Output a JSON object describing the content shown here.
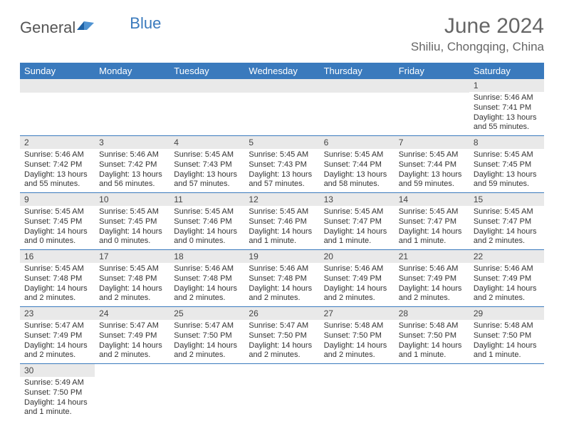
{
  "brand": {
    "general": "General",
    "blue": "Blue"
  },
  "title": "June 2024",
  "location": "Shiliu, Chongqing, China",
  "colors": {
    "header_bg": "#3a7abd",
    "header_text": "#ffffff",
    "daynum_bg": "#e9e9e9",
    "cell_border": "#3a7abd",
    "page_bg": "#ffffff",
    "title_color": "#666666",
    "body_text": "#333333"
  },
  "day_headers": [
    "Sunday",
    "Monday",
    "Tuesday",
    "Wednesday",
    "Thursday",
    "Friday",
    "Saturday"
  ],
  "weeks": [
    [
      {
        "day": "",
        "sunrise": "",
        "sunset": "",
        "daylight": ""
      },
      {
        "day": "",
        "sunrise": "",
        "sunset": "",
        "daylight": ""
      },
      {
        "day": "",
        "sunrise": "",
        "sunset": "",
        "daylight": ""
      },
      {
        "day": "",
        "sunrise": "",
        "sunset": "",
        "daylight": ""
      },
      {
        "day": "",
        "sunrise": "",
        "sunset": "",
        "daylight": ""
      },
      {
        "day": "",
        "sunrise": "",
        "sunset": "",
        "daylight": ""
      },
      {
        "day": "1",
        "sunrise": "Sunrise: 5:46 AM",
        "sunset": "Sunset: 7:41 PM",
        "daylight": "Daylight: 13 hours and 55 minutes."
      }
    ],
    [
      {
        "day": "2",
        "sunrise": "Sunrise: 5:46 AM",
        "sunset": "Sunset: 7:42 PM",
        "daylight": "Daylight: 13 hours and 55 minutes."
      },
      {
        "day": "3",
        "sunrise": "Sunrise: 5:46 AM",
        "sunset": "Sunset: 7:42 PM",
        "daylight": "Daylight: 13 hours and 56 minutes."
      },
      {
        "day": "4",
        "sunrise": "Sunrise: 5:45 AM",
        "sunset": "Sunset: 7:43 PM",
        "daylight": "Daylight: 13 hours and 57 minutes."
      },
      {
        "day": "5",
        "sunrise": "Sunrise: 5:45 AM",
        "sunset": "Sunset: 7:43 PM",
        "daylight": "Daylight: 13 hours and 57 minutes."
      },
      {
        "day": "6",
        "sunrise": "Sunrise: 5:45 AM",
        "sunset": "Sunset: 7:44 PM",
        "daylight": "Daylight: 13 hours and 58 minutes."
      },
      {
        "day": "7",
        "sunrise": "Sunrise: 5:45 AM",
        "sunset": "Sunset: 7:44 PM",
        "daylight": "Daylight: 13 hours and 59 minutes."
      },
      {
        "day": "8",
        "sunrise": "Sunrise: 5:45 AM",
        "sunset": "Sunset: 7:45 PM",
        "daylight": "Daylight: 13 hours and 59 minutes."
      }
    ],
    [
      {
        "day": "9",
        "sunrise": "Sunrise: 5:45 AM",
        "sunset": "Sunset: 7:45 PM",
        "daylight": "Daylight: 14 hours and 0 minutes."
      },
      {
        "day": "10",
        "sunrise": "Sunrise: 5:45 AM",
        "sunset": "Sunset: 7:45 PM",
        "daylight": "Daylight: 14 hours and 0 minutes."
      },
      {
        "day": "11",
        "sunrise": "Sunrise: 5:45 AM",
        "sunset": "Sunset: 7:46 PM",
        "daylight": "Daylight: 14 hours and 0 minutes."
      },
      {
        "day": "12",
        "sunrise": "Sunrise: 5:45 AM",
        "sunset": "Sunset: 7:46 PM",
        "daylight": "Daylight: 14 hours and 1 minute."
      },
      {
        "day": "13",
        "sunrise": "Sunrise: 5:45 AM",
        "sunset": "Sunset: 7:47 PM",
        "daylight": "Daylight: 14 hours and 1 minute."
      },
      {
        "day": "14",
        "sunrise": "Sunrise: 5:45 AM",
        "sunset": "Sunset: 7:47 PM",
        "daylight": "Daylight: 14 hours and 1 minute."
      },
      {
        "day": "15",
        "sunrise": "Sunrise: 5:45 AM",
        "sunset": "Sunset: 7:47 PM",
        "daylight": "Daylight: 14 hours and 2 minutes."
      }
    ],
    [
      {
        "day": "16",
        "sunrise": "Sunrise: 5:45 AM",
        "sunset": "Sunset: 7:48 PM",
        "daylight": "Daylight: 14 hours and 2 minutes."
      },
      {
        "day": "17",
        "sunrise": "Sunrise: 5:45 AM",
        "sunset": "Sunset: 7:48 PM",
        "daylight": "Daylight: 14 hours and 2 minutes."
      },
      {
        "day": "18",
        "sunrise": "Sunrise: 5:46 AM",
        "sunset": "Sunset: 7:48 PM",
        "daylight": "Daylight: 14 hours and 2 minutes."
      },
      {
        "day": "19",
        "sunrise": "Sunrise: 5:46 AM",
        "sunset": "Sunset: 7:48 PM",
        "daylight": "Daylight: 14 hours and 2 minutes."
      },
      {
        "day": "20",
        "sunrise": "Sunrise: 5:46 AM",
        "sunset": "Sunset: 7:49 PM",
        "daylight": "Daylight: 14 hours and 2 minutes."
      },
      {
        "day": "21",
        "sunrise": "Sunrise: 5:46 AM",
        "sunset": "Sunset: 7:49 PM",
        "daylight": "Daylight: 14 hours and 2 minutes."
      },
      {
        "day": "22",
        "sunrise": "Sunrise: 5:46 AM",
        "sunset": "Sunset: 7:49 PM",
        "daylight": "Daylight: 14 hours and 2 minutes."
      }
    ],
    [
      {
        "day": "23",
        "sunrise": "Sunrise: 5:47 AM",
        "sunset": "Sunset: 7:49 PM",
        "daylight": "Daylight: 14 hours and 2 minutes."
      },
      {
        "day": "24",
        "sunrise": "Sunrise: 5:47 AM",
        "sunset": "Sunset: 7:49 PM",
        "daylight": "Daylight: 14 hours and 2 minutes."
      },
      {
        "day": "25",
        "sunrise": "Sunrise: 5:47 AM",
        "sunset": "Sunset: 7:50 PM",
        "daylight": "Daylight: 14 hours and 2 minutes."
      },
      {
        "day": "26",
        "sunrise": "Sunrise: 5:47 AM",
        "sunset": "Sunset: 7:50 PM",
        "daylight": "Daylight: 14 hours and 2 minutes."
      },
      {
        "day": "27",
        "sunrise": "Sunrise: 5:48 AM",
        "sunset": "Sunset: 7:50 PM",
        "daylight": "Daylight: 14 hours and 2 minutes."
      },
      {
        "day": "28",
        "sunrise": "Sunrise: 5:48 AM",
        "sunset": "Sunset: 7:50 PM",
        "daylight": "Daylight: 14 hours and 1 minute."
      },
      {
        "day": "29",
        "sunrise": "Sunrise: 5:48 AM",
        "sunset": "Sunset: 7:50 PM",
        "daylight": "Daylight: 14 hours and 1 minute."
      }
    ],
    [
      {
        "day": "30",
        "sunrise": "Sunrise: 5:49 AM",
        "sunset": "Sunset: 7:50 PM",
        "daylight": "Daylight: 14 hours and 1 minute."
      },
      {
        "day": "",
        "sunrise": "",
        "sunset": "",
        "daylight": ""
      },
      {
        "day": "",
        "sunrise": "",
        "sunset": "",
        "daylight": ""
      },
      {
        "day": "",
        "sunrise": "",
        "sunset": "",
        "daylight": ""
      },
      {
        "day": "",
        "sunrise": "",
        "sunset": "",
        "daylight": ""
      },
      {
        "day": "",
        "sunrise": "",
        "sunset": "",
        "daylight": ""
      },
      {
        "day": "",
        "sunrise": "",
        "sunset": "",
        "daylight": ""
      }
    ]
  ]
}
